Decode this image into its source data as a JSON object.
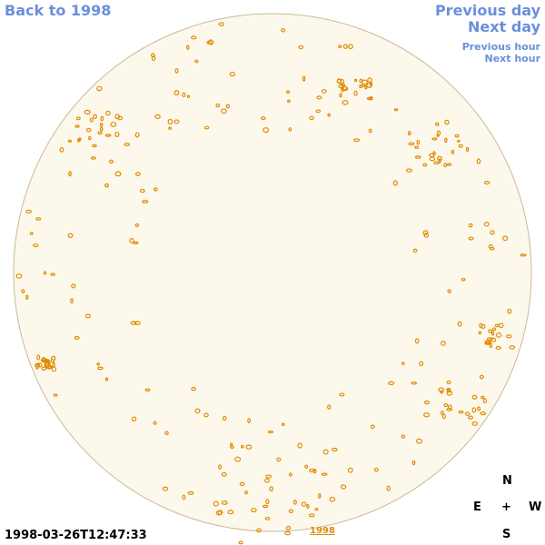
{
  "nav": {
    "back_year": "Back to 1998",
    "previous_day": "Previous day",
    "next_day": "Next day",
    "previous_hour": "Previous hour",
    "next_hour": "Next hour"
  },
  "timestamp": "1998-03-26T12:47:33",
  "year_link": "1998",
  "compass": {
    "north": "N",
    "east": "E",
    "center": "+",
    "west": "W",
    "south": "S"
  }
}
